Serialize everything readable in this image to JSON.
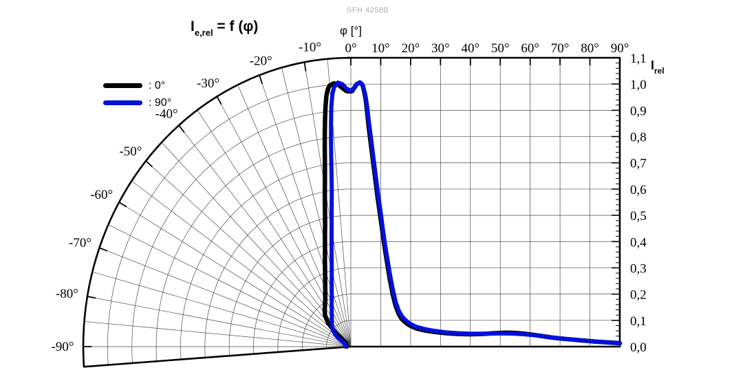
{
  "figure": {
    "part_number": "SFH 4258B",
    "title": {
      "base": "I",
      "sub": "e,rel",
      "rest": " = f (φ)"
    },
    "angle_axis_label": "φ [°]",
    "value_axis_label": {
      "base": "I",
      "sub": "rel"
    }
  },
  "legend": {
    "items": [
      {
        "label": ": 0°",
        "color": "#000000"
      },
      {
        "label": ": 90°",
        "color": "#0010dd"
      }
    ]
  },
  "chart_data": {
    "type": "line",
    "layout_hint": "left half: polar fan (angles -90°..0°, radial lines every 5°, arcs every 0.1); right half: cartesian grid (0°..90° vs I_rel 0..1.1); legend top-left; grid on",
    "title": "Ie,rel = f (φ)",
    "xlabel": "φ [°]",
    "ylabel": "Irel",
    "angle_range_deg": [
      -90,
      90
    ],
    "ylim": [
      0,
      1.1
    ],
    "top_axis_tick_labels": [
      "0°",
      "10°",
      "20°",
      "30°",
      "40°",
      "50°",
      "60°",
      "70°",
      "80°",
      "90°"
    ],
    "polar_arc_tick_labels": [
      "-10°",
      "-20°",
      "-30°",
      "-40°",
      "-50°",
      "-60°",
      "-70°",
      "-80°",
      "-90°"
    ],
    "value_axis_tick_labels": [
      "1,1",
      "1,0",
      "0,9",
      "0,8",
      "0,7",
      "0,6",
      "0,5",
      "0,4",
      "0,3",
      "0,2",
      "0,1",
      "0,0"
    ],
    "series": [
      {
        "name": "0°",
        "color": "#000000",
        "points": [
          [
            -90,
            0.018
          ],
          [
            -80,
            0.019
          ],
          [
            -70,
            0.02
          ],
          [
            -60,
            0.022
          ],
          [
            -55,
            0.025
          ],
          [
            -52,
            0.04
          ],
          [
            -50,
            0.07
          ],
          [
            -48,
            0.1
          ],
          [
            -46,
            0.13
          ],
          [
            -42,
            0.158
          ],
          [
            -38,
            0.175
          ],
          [
            -34,
            0.19
          ],
          [
            -30,
            0.21
          ],
          [
            -26,
            0.24
          ],
          [
            -23,
            0.27
          ],
          [
            -20,
            0.31
          ],
          [
            -18,
            0.345
          ],
          [
            -16,
            0.385
          ],
          [
            -14,
            0.44
          ],
          [
            -13,
            0.47
          ],
          [
            -12,
            0.51
          ],
          [
            -11,
            0.56
          ],
          [
            -10,
            0.615
          ],
          [
            -9,
            0.68
          ],
          [
            -8,
            0.77
          ],
          [
            -7.5,
            0.82
          ],
          [
            -7,
            0.87
          ],
          [
            -6.5,
            0.92
          ],
          [
            -6,
            0.96
          ],
          [
            -5.5,
            0.985
          ],
          [
            -5,
            0.998
          ],
          [
            -4,
            1.005
          ],
          [
            -3,
            1.0
          ],
          [
            -2,
            0.985
          ],
          [
            -1,
            0.973
          ],
          [
            0,
            0.972
          ],
          [
            0.5,
            0.974
          ],
          [
            1,
            0.983
          ],
          [
            2,
            1.0
          ],
          [
            3,
            1.005
          ],
          [
            3.5,
            1.002
          ],
          [
            4,
            0.993
          ],
          [
            4.5,
            0.97
          ],
          [
            5,
            0.94
          ],
          [
            5.5,
            0.89
          ],
          [
            6,
            0.835
          ],
          [
            6.5,
            0.79
          ],
          [
            7,
            0.745
          ],
          [
            7.5,
            0.7
          ],
          [
            8,
            0.655
          ],
          [
            8.5,
            0.61
          ],
          [
            9,
            0.565
          ],
          [
            9.5,
            0.525
          ],
          [
            10,
            0.485
          ],
          [
            10.5,
            0.445
          ],
          [
            11,
            0.405
          ],
          [
            11.5,
            0.365
          ],
          [
            12,
            0.33
          ],
          [
            12.5,
            0.295
          ],
          [
            13,
            0.26
          ],
          [
            13.5,
            0.23
          ],
          [
            14,
            0.2
          ],
          [
            15,
            0.155
          ],
          [
            16,
            0.125
          ],
          [
            17,
            0.106
          ],
          [
            18,
            0.095
          ],
          [
            19,
            0.086
          ],
          [
            20,
            0.079
          ],
          [
            22,
            0.069
          ],
          [
            25,
            0.061
          ],
          [
            28,
            0.056
          ],
          [
            32,
            0.051
          ],
          [
            36,
            0.048
          ],
          [
            40,
            0.047
          ],
          [
            44,
            0.048
          ],
          [
            48,
            0.051
          ],
          [
            52,
            0.053
          ],
          [
            55,
            0.052
          ],
          [
            58,
            0.049
          ],
          [
            61,
            0.045
          ],
          [
            64,
            0.04
          ],
          [
            67,
            0.035
          ],
          [
            70,
            0.031
          ],
          [
            74,
            0.027
          ],
          [
            78,
            0.023
          ],
          [
            82,
            0.019
          ],
          [
            86,
            0.016
          ],
          [
            90,
            0.013
          ]
        ]
      },
      {
        "name": "90°",
        "color": "#0010dd",
        "points": [
          [
            -90,
            0.022
          ],
          [
            -80,
            0.023
          ],
          [
            -70,
            0.025
          ],
          [
            -64,
            0.03
          ],
          [
            -60,
            0.045
          ],
          [
            -58,
            0.06
          ],
          [
            -55,
            0.075
          ],
          [
            -50,
            0.095
          ],
          [
            -46,
            0.107
          ],
          [
            -42,
            0.117
          ],
          [
            -38,
            0.127
          ],
          [
            -34,
            0.14
          ],
          [
            -30,
            0.157
          ],
          [
            -26,
            0.18
          ],
          [
            -23,
            0.2
          ],
          [
            -20,
            0.23
          ],
          [
            -18,
            0.255
          ],
          [
            -16,
            0.285
          ],
          [
            -14,
            0.325
          ],
          [
            -13,
            0.35
          ],
          [
            -12,
            0.38
          ],
          [
            -11,
            0.415
          ],
          [
            -10,
            0.455
          ],
          [
            -9,
            0.505
          ],
          [
            -8,
            0.565
          ],
          [
            -7.5,
            0.6
          ],
          [
            -7,
            0.65
          ],
          [
            -6.5,
            0.71
          ],
          [
            -6,
            0.78
          ],
          [
            -5.5,
            0.85
          ],
          [
            -5,
            0.92
          ],
          [
            -4.5,
            0.965
          ],
          [
            -4,
            0.99
          ],
          [
            -3,
            1.007
          ],
          [
            -2,
            1.0
          ],
          [
            -1,
            0.982
          ],
          [
            0,
            0.975
          ],
          [
            0.5,
            0.978
          ],
          [
            1,
            0.985
          ],
          [
            2,
            1.0
          ],
          [
            3,
            1.007
          ],
          [
            3.5,
            1.003
          ],
          [
            4,
            0.995
          ],
          [
            4.5,
            0.975
          ],
          [
            5,
            0.95
          ],
          [
            5.5,
            0.91
          ],
          [
            6,
            0.86
          ],
          [
            6.5,
            0.815
          ],
          [
            7,
            0.77
          ],
          [
            7.5,
            0.725
          ],
          [
            8,
            0.68
          ],
          [
            8.5,
            0.635
          ],
          [
            9,
            0.59
          ],
          [
            9.5,
            0.55
          ],
          [
            10,
            0.51
          ],
          [
            10.5,
            0.465
          ],
          [
            11,
            0.425
          ],
          [
            11.5,
            0.385
          ],
          [
            12,
            0.35
          ],
          [
            12.5,
            0.315
          ],
          [
            13,
            0.28
          ],
          [
            13.5,
            0.25
          ],
          [
            14,
            0.22
          ],
          [
            15,
            0.17
          ],
          [
            16,
            0.138
          ],
          [
            17,
            0.117
          ],
          [
            18,
            0.104
          ],
          [
            19,
            0.094
          ],
          [
            20,
            0.086
          ],
          [
            22,
            0.075
          ],
          [
            25,
            0.066
          ],
          [
            28,
            0.06
          ],
          [
            32,
            0.054
          ],
          [
            36,
            0.051
          ],
          [
            40,
            0.049
          ],
          [
            44,
            0.049
          ],
          [
            48,
            0.05
          ],
          [
            52,
            0.05
          ],
          [
            55,
            0.049
          ],
          [
            58,
            0.047
          ],
          [
            61,
            0.044
          ],
          [
            64,
            0.04
          ],
          [
            67,
            0.035
          ],
          [
            70,
            0.031
          ],
          [
            74,
            0.027
          ],
          [
            78,
            0.023
          ],
          [
            82,
            0.019
          ],
          [
            86,
            0.016
          ],
          [
            90,
            0.014
          ]
        ]
      }
    ]
  }
}
